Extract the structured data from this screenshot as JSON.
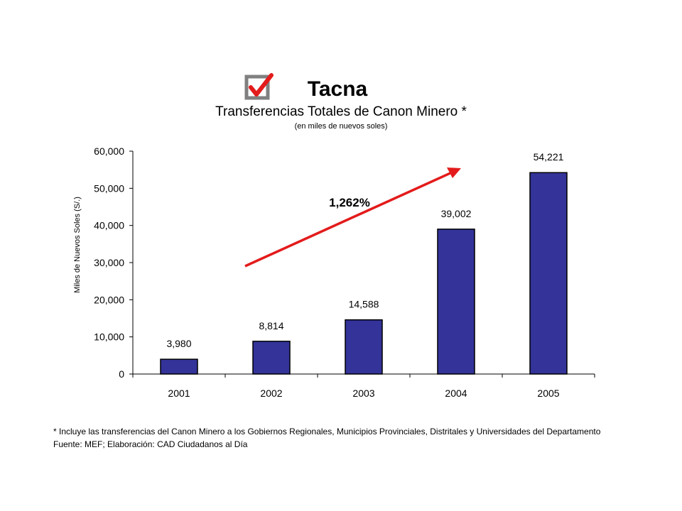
{
  "header": {
    "title": "Tacna",
    "subtitle": "Transferencias Totales de Canon Minero *",
    "unit_note": "(en miles de nuevos soles)"
  },
  "icons": {
    "title_icon": "checkbox-check-icon"
  },
  "colors": {
    "bar": "#333399",
    "bar_border": "#000000",
    "trend_arrow": "#e31b1b",
    "icon_box": "#808080",
    "icon_check": "#e31b1b"
  },
  "chart_data": {
    "type": "bar",
    "categories": [
      "2001",
      "2002",
      "2003",
      "2004",
      "2005"
    ],
    "series": [
      {
        "values": [
          3980,
          8814,
          14588,
          39002,
          54221
        ],
        "data_labels": [
          "3,980",
          "8,814",
          "14,588",
          "39,002",
          "54,221"
        ]
      }
    ],
    "ylabel": "Miles de Nuevos Soles (S/.)",
    "xlabel": "",
    "ylim": [
      0,
      60000
    ],
    "yticks": [
      0,
      10000,
      20000,
      30000,
      40000,
      50000,
      60000
    ],
    "ytick_labels": [
      "0",
      "10,000",
      "20,000",
      "30,000",
      "40,000",
      "50,000",
      "60,000"
    ],
    "grid": false,
    "legend": "none",
    "annotations": [
      {
        "type": "trend-arrow",
        "label": "1,262%"
      }
    ]
  },
  "footer": {
    "footnote": "* Incluye las transferencias del Canon Minero a los Gobiernos Regionales, Municipios Provinciales, Distritales y Universidades del Departamento",
    "source": "Fuente: MEF; Elaboración: CAD Ciudadanos al Día"
  }
}
